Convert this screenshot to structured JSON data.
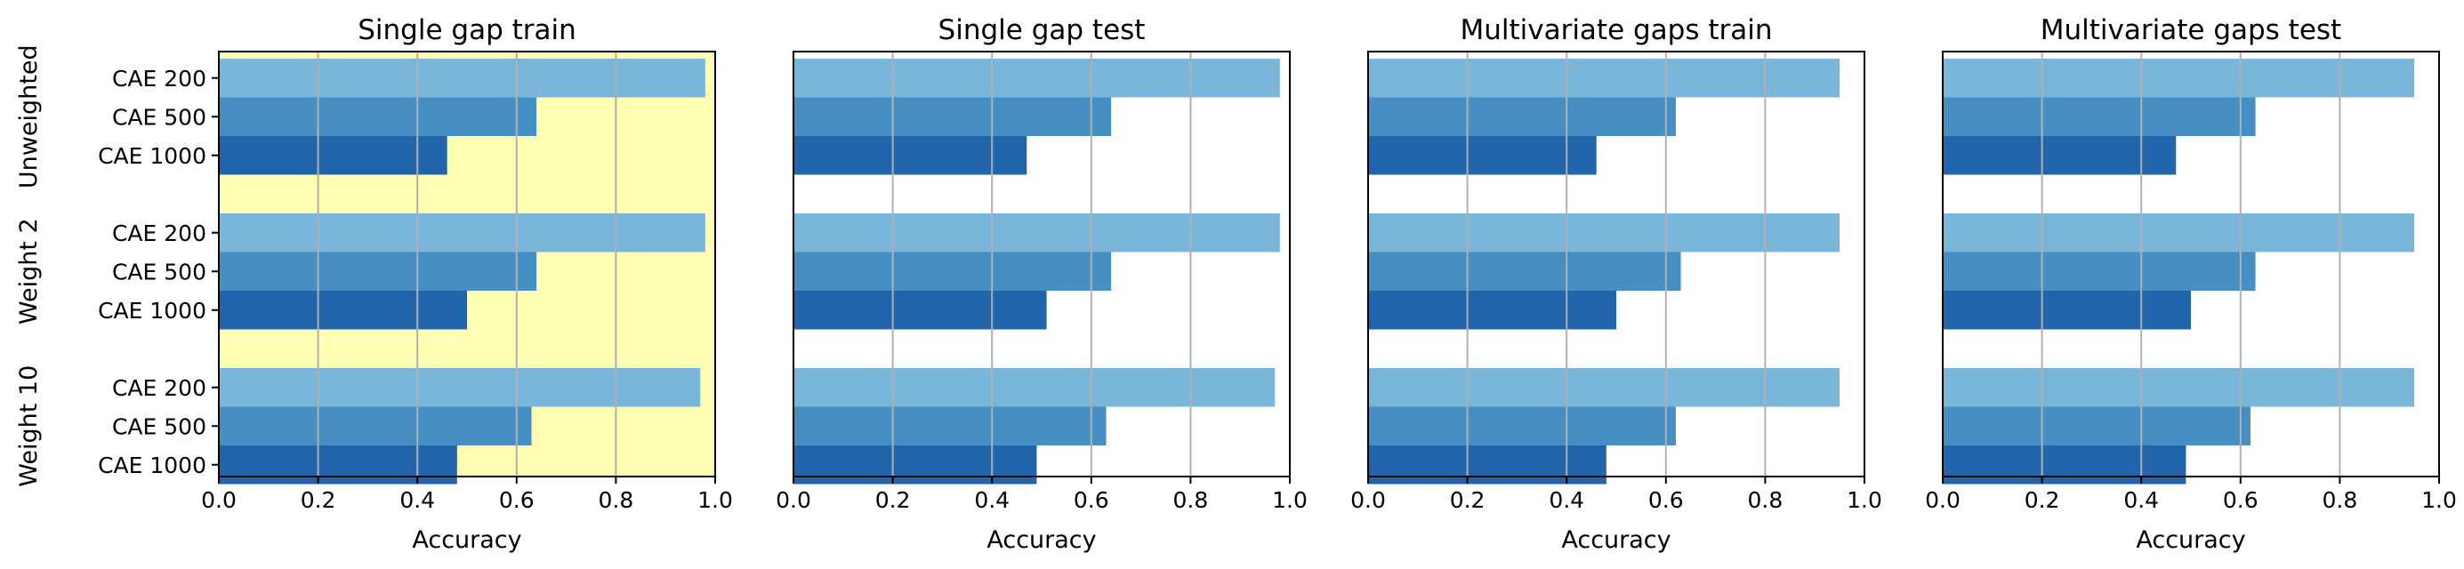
{
  "chart_data": [
    {
      "type": "bar",
      "orientation": "horizontal",
      "title": "Single gap train",
      "xlabel": "Accuracy",
      "ylabel": "",
      "xlim": [
        0.0,
        1.0
      ],
      "xticks": [
        "0.0",
        "0.2",
        "0.4",
        "0.6",
        "0.8",
        "1.0"
      ],
      "grid": "x",
      "highlighted": true,
      "groups": [
        {
          "name": "Unweighted",
          "bars": [
            {
              "label": "CAE 200",
              "value": 0.98
            },
            {
              "label": "CAE 500",
              "value": 0.64
            },
            {
              "label": "CAE 1000",
              "value": 0.46
            }
          ]
        },
        {
          "name": "Weight 2",
          "bars": [
            {
              "label": "CAE 200",
              "value": 0.98
            },
            {
              "label": "CAE 500",
              "value": 0.64
            },
            {
              "label": "CAE 1000",
              "value": 0.5
            }
          ]
        },
        {
          "name": "Weight 10",
          "bars": [
            {
              "label": "CAE 200",
              "value": 0.97
            },
            {
              "label": "CAE 500",
              "value": 0.63
            },
            {
              "label": "CAE 1000",
              "value": 0.48
            }
          ]
        }
      ]
    },
    {
      "type": "bar",
      "orientation": "horizontal",
      "title": "Single gap test",
      "xlabel": "Accuracy",
      "ylabel": "",
      "xlim": [
        0.0,
        1.0
      ],
      "xticks": [
        "0.0",
        "0.2",
        "0.4",
        "0.6",
        "0.8",
        "1.0"
      ],
      "grid": "x",
      "highlighted": false,
      "groups": [
        {
          "name": "Unweighted",
          "bars": [
            {
              "label": "CAE 200",
              "value": 0.98
            },
            {
              "label": "CAE 500",
              "value": 0.64
            },
            {
              "label": "CAE 1000",
              "value": 0.47
            }
          ]
        },
        {
          "name": "Weight 2",
          "bars": [
            {
              "label": "CAE 200",
              "value": 0.98
            },
            {
              "label": "CAE 500",
              "value": 0.64
            },
            {
              "label": "CAE 1000",
              "value": 0.51
            }
          ]
        },
        {
          "name": "Weight 10",
          "bars": [
            {
              "label": "CAE 200",
              "value": 0.97
            },
            {
              "label": "CAE 500",
              "value": 0.63
            },
            {
              "label": "CAE 1000",
              "value": 0.49
            }
          ]
        }
      ]
    },
    {
      "type": "bar",
      "orientation": "horizontal",
      "title": "Multivariate gaps train",
      "xlabel": "Accuracy",
      "ylabel": "",
      "xlim": [
        0.0,
        1.0
      ],
      "xticks": [
        "0.0",
        "0.2",
        "0.4",
        "0.6",
        "0.8",
        "1.0"
      ],
      "grid": "x",
      "highlighted": false,
      "groups": [
        {
          "name": "Unweighted",
          "bars": [
            {
              "label": "CAE 200",
              "value": 0.95
            },
            {
              "label": "CAE 500",
              "value": 0.62
            },
            {
              "label": "CAE 1000",
              "value": 0.46
            }
          ]
        },
        {
          "name": "Weight 2",
          "bars": [
            {
              "label": "CAE 200",
              "value": 0.95
            },
            {
              "label": "CAE 500",
              "value": 0.63
            },
            {
              "label": "CAE 1000",
              "value": 0.5
            }
          ]
        },
        {
          "name": "Weight 10",
          "bars": [
            {
              "label": "CAE 200",
              "value": 0.95
            },
            {
              "label": "CAE 500",
              "value": 0.62
            },
            {
              "label": "CAE 1000",
              "value": 0.48
            }
          ]
        }
      ]
    },
    {
      "type": "bar",
      "orientation": "horizontal",
      "title": "Multivariate gaps test",
      "xlabel": "Accuracy",
      "ylabel": "",
      "xlim": [
        0.0,
        1.0
      ],
      "xticks": [
        "0.0",
        "0.2",
        "0.4",
        "0.6",
        "0.8",
        "1.0"
      ],
      "grid": "x",
      "highlighted": false,
      "groups": [
        {
          "name": "Unweighted",
          "bars": [
            {
              "label": "CAE 200",
              "value": 0.95
            },
            {
              "label": "CAE 500",
              "value": 0.63
            },
            {
              "label": "CAE 1000",
              "value": 0.47
            }
          ]
        },
        {
          "name": "Weight 2",
          "bars": [
            {
              "label": "CAE 200",
              "value": 0.95
            },
            {
              "label": "CAE 500",
              "value": 0.63
            },
            {
              "label": "CAE 1000",
              "value": 0.5
            }
          ]
        },
        {
          "name": "Weight 10",
          "bars": [
            {
              "label": "CAE 200",
              "value": 0.95
            },
            {
              "label": "CAE 500",
              "value": 0.62
            },
            {
              "label": "CAE 1000",
              "value": 0.49
            }
          ]
        }
      ]
    }
  ],
  "colors": {
    "CAE 200": "#7ab5da",
    "CAE 500": "#458fc4",
    "CAE 1000": "#2166ac",
    "highlight_background": "#ffffb3",
    "grid": "#b0b0b0"
  }
}
